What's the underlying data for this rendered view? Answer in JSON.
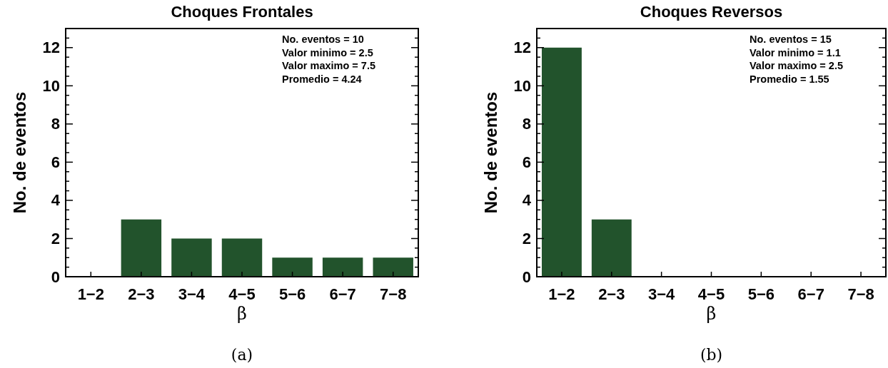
{
  "chart_data": [
    {
      "type": "bar",
      "title": "Choques Frontales",
      "xlabel": "β",
      "ylabel": "No. de eventos",
      "categories": [
        "1−2",
        "2−3",
        "3−4",
        "4−5",
        "5−6",
        "6−7",
        "7−8"
      ],
      "values": [
        0,
        3,
        2,
        2,
        1,
        1,
        1
      ],
      "color": "#22532c",
      "ylim": [
        0,
        13
      ],
      "yticks": [
        0,
        {
          "value": 0.5,
          "label": null
        },
        {
          "value": 1,
          "label": null
        },
        {
          "value": 1.5,
          "label": null
        },
        2,
        {
          "value": 2.5,
          "label": null
        },
        {
          "value": 3,
          "label": null
        },
        {
          "value": 3.5,
          "label": null
        },
        4,
        {
          "value": 4.5,
          "label": null
        },
        {
          "value": 5,
          "label": null
        },
        {
          "value": 5.5,
          "label": null
        },
        6,
        {
          "value": 6.5,
          "label": null
        },
        {
          "value": 7,
          "label": null
        },
        {
          "value": 7.5,
          "label": null
        },
        8,
        {
          "value": 8.5,
          "label": null
        },
        {
          "value": 9,
          "label": null
        },
        {
          "value": 9.5,
          "label": null
        },
        10,
        {
          "value": 10.5,
          "label": null
        },
        {
          "value": 11,
          "label": null
        },
        {
          "value": 11.5,
          "label": null
        },
        12,
        {
          "value": 12.5,
          "label": null
        }
      ],
      "annotations": [
        "No. eventos = 10",
        "Valor minimo = 2.5",
        "Valor maximo = 7.5",
        "Promedio = 4.24",
        "(a)"
      ]
    },
    {
      "type": "bar",
      "title": "Choques Reversos",
      "xlabel": "β",
      "ylabel": "No. de eventos",
      "categories": [
        "1−2",
        "2−3",
        "3−4",
        "4−5",
        "5−6",
        "6−7",
        "7−8"
      ],
      "values": [
        12,
        3,
        0,
        0,
        0,
        0,
        0
      ],
      "color": "#22532c",
      "ylim": [
        0,
        13
      ],
      "yticks": [
        0,
        {
          "value": 0.5,
          "label": null
        },
        {
          "value": 1,
          "label": null
        },
        {
          "value": 1.5,
          "label": null
        },
        2,
        {
          "value": 2.5,
          "label": null
        },
        {
          "value": 3,
          "label": null
        },
        {
          "value": 3.5,
          "label": null
        },
        4,
        {
          "value": 4.5,
          "label": null
        },
        {
          "value": 5,
          "label": null
        },
        {
          "value": 5.5,
          "label": null
        },
        6,
        {
          "value": 6.5,
          "label": null
        },
        {
          "value": 7,
          "label": null
        },
        {
          "value": 7.5,
          "label": null
        },
        8,
        {
          "value": 8.5,
          "label": null
        },
        {
          "value": 9,
          "label": null
        },
        {
          "value": 9.5,
          "label": null
        },
        10,
        {
          "value": 10.5,
          "label": null
        },
        {
          "value": 11,
          "label": null
        },
        {
          "value": 11.5,
          "label": null
        },
        12,
        {
          "value": 12.5,
          "label": null
        }
      ],
      "annotations": [
        "No. eventos = 15",
        "Valor minimo = 1.1",
        "Valor maximo = 2.5",
        "Promedio = 1.55",
        "(b)"
      ]
    }
  ]
}
